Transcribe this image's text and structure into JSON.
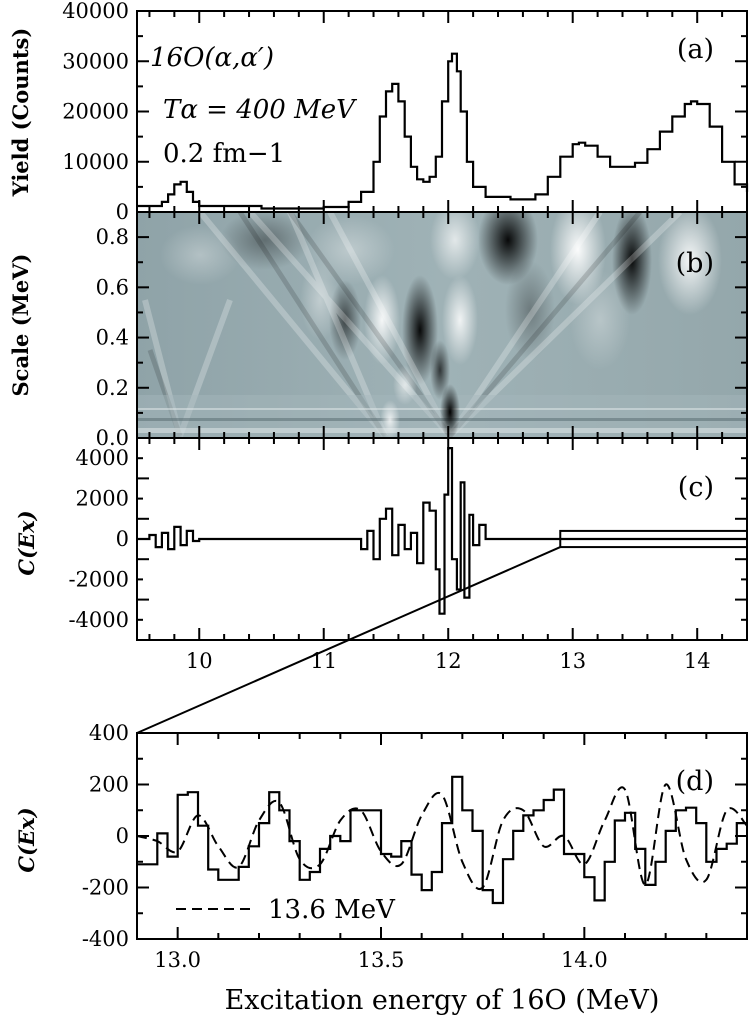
{
  "chart_data": [
    {
      "panel": "(a)",
      "type": "line",
      "ylabel": "Yield (Counts)",
      "ylim": [
        0,
        40000
      ],
      "xlim": [
        9.5,
        14.4
      ],
      "yticks": [
        "0",
        "10000",
        "20000",
        "30000",
        "40000"
      ],
      "annotations": [
        "16O(α,α′)",
        "Tα = 400 MeV",
        "0.2 fm−1"
      ],
      "series": [
        {
          "step": true,
          "x": [
            9.5,
            9.7,
            9.75,
            9.8,
            9.85,
            9.9,
            9.95,
            10.0,
            10.5,
            11.0,
            11.2,
            11.3,
            11.4,
            11.45,
            11.5,
            11.55,
            11.6,
            11.65,
            11.7,
            11.75,
            11.8,
            11.85,
            11.9,
            11.95,
            12.0,
            12.03,
            12.07,
            12.1,
            12.15,
            12.2,
            12.3,
            12.5,
            12.7,
            12.8,
            12.9,
            13.0,
            13.05,
            13.1,
            13.2,
            13.3,
            13.5,
            13.6,
            13.7,
            13.8,
            13.9,
            13.95,
            14.0,
            14.1,
            14.2,
            14.3,
            14.4
          ],
          "y": [
            1200,
            2000,
            3500,
            5500,
            6000,
            4000,
            2000,
            1200,
            700,
            1000,
            2000,
            4000,
            10000,
            19000,
            24000,
            25500,
            22000,
            15000,
            9000,
            6500,
            6000,
            7000,
            11000,
            22000,
            30000,
            31500,
            28000,
            20000,
            10000,
            5000,
            3000,
            2500,
            3500,
            7000,
            11000,
            13500,
            13800,
            13200,
            11000,
            9000,
            9800,
            12500,
            16000,
            19000,
            21500,
            22000,
            21500,
            17000,
            10000,
            5500,
            4000
          ]
        }
      ]
    },
    {
      "panel": "(b)",
      "type": "heatmap",
      "ylabel": "Scale (MeV)",
      "ylim": [
        0,
        0.9
      ],
      "xlim": [
        9.5,
        14.4
      ],
      "yticks": [
        "0.0",
        "0.2",
        "0.4",
        "0.6",
        "0.8"
      ]
    },
    {
      "panel": "(c)",
      "type": "line",
      "ylabel": "C(Ex)",
      "ylim": [
        -5000,
        5000
      ],
      "xlim": [
        9.5,
        14.4
      ],
      "yticks": [
        "-4000",
        "-2000",
        "0",
        "2000",
        "4000"
      ],
      "xticks": [
        "10",
        "11",
        "12",
        "13",
        "14"
      ],
      "inset_box": {
        "x": [
          12.9,
          14.4
        ],
        "y": [
          -400,
          400
        ]
      },
      "series": [
        {
          "step": true,
          "x": [
            9.5,
            9.6,
            9.65,
            9.7,
            9.75,
            9.8,
            9.85,
            9.9,
            9.95,
            10.0,
            10.5,
            11.2,
            11.3,
            11.35,
            11.4,
            11.45,
            11.5,
            11.55,
            11.6,
            11.65,
            11.7,
            11.75,
            11.8,
            11.85,
            11.9,
            11.93,
            11.97,
            12.0,
            12.03,
            12.07,
            12.1,
            12.13,
            12.17,
            12.2,
            12.25,
            12.3,
            12.9,
            14.4
          ],
          "y": [
            0,
            200,
            -400,
            300,
            -500,
            600,
            -300,
            400,
            -100,
            0,
            0,
            0,
            -500,
            400,
            -1000,
            1000,
            1500,
            -800,
            700,
            -500,
            300,
            -1200,
            1800,
            1400,
            -1500,
            -3700,
            2200,
            4500,
            -1000,
            -2500,
            2800,
            -2900,
            1200,
            -300,
            700,
            0,
            0,
            0
          ]
        }
      ]
    },
    {
      "panel": "(d)",
      "type": "line",
      "ylabel": "C(Ex)",
      "xlabel": "Excitation energy of 16O (MeV)",
      "ylim": [
        -400,
        400
      ],
      "xlim": [
        12.9,
        14.4
      ],
      "yticks": [
        "-400",
        "-200",
        "0",
        "200",
        "400"
      ],
      "xticks": [
        "13.0",
        "13.5",
        "14.0"
      ],
      "legend": "13.6 MeV",
      "series": [
        {
          "step": true,
          "x": [
            12.9,
            12.925,
            12.95,
            12.975,
            13.0,
            13.025,
            13.05,
            13.075,
            13.1,
            13.125,
            13.15,
            13.175,
            13.2,
            13.225,
            13.25,
            13.275,
            13.3,
            13.325,
            13.35,
            13.375,
            13.4,
            13.425,
            13.45,
            13.475,
            13.5,
            13.525,
            13.55,
            13.575,
            13.6,
            13.625,
            13.65,
            13.675,
            13.7,
            13.725,
            13.75,
            13.775,
            13.8,
            13.825,
            13.85,
            13.875,
            13.9,
            13.925,
            13.95,
            13.975,
            14.0,
            14.025,
            14.05,
            14.075,
            14.1,
            14.125,
            14.15,
            14.175,
            14.2,
            14.225,
            14.25,
            14.275,
            14.3,
            14.325,
            14.35,
            14.375
          ],
          "y": [
            -110,
            -110,
            10,
            -80,
            160,
            170,
            40,
            -130,
            -170,
            -170,
            -120,
            -40,
            50,
            170,
            100,
            -20,
            -170,
            -140,
            -50,
            0,
            -20,
            100,
            100,
            100,
            -70,
            -80,
            -20,
            -150,
            -210,
            -140,
            50,
            230,
            100,
            20,
            -210,
            -260,
            -90,
            20,
            80,
            100,
            140,
            180,
            -70,
            -70,
            -160,
            -250,
            -100,
            60,
            90,
            -50,
            -190,
            -100,
            20,
            100,
            110,
            50,
            -100,
            -50,
            -30,
            50
          ]
        },
        {
          "name": "13.6 MeV",
          "dashed": true,
          "x": [
            12.9,
            12.95,
            13.0,
            13.05,
            13.1,
            13.15,
            13.2,
            13.25,
            13.3,
            13.35,
            13.4,
            13.45,
            13.5,
            13.55,
            13.6,
            13.65,
            13.7,
            13.75,
            13.8,
            13.85,
            13.9,
            13.95,
            14.0,
            14.05,
            14.1,
            14.15,
            14.2,
            14.25,
            14.3,
            14.35,
            14.4
          ],
          "y": [
            0,
            -20,
            -60,
            80,
            -40,
            -120,
            60,
            130,
            -90,
            -110,
            60,
            100,
            -60,
            -110,
            80,
            160,
            -100,
            -200,
            60,
            100,
            -40,
            0,
            -110,
            60,
            180,
            -190,
            200,
            -90,
            -170,
            100,
            40
          ]
        }
      ]
    }
  ]
}
